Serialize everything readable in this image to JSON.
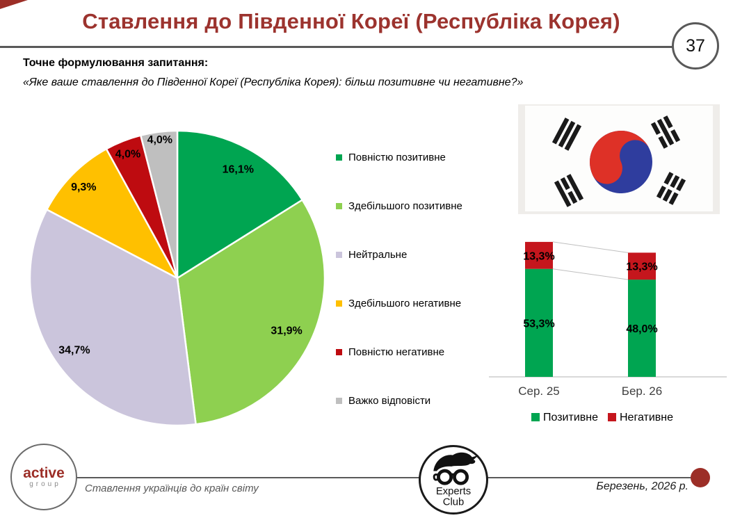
{
  "slide": {
    "title": "Ставлення до Південної Кореї (Республіка Корея)",
    "page_number": "37"
  },
  "question": {
    "label": "Точне формулювання запитання:",
    "text": "«Яке ваше ставлення до Південної Кореї (Республіка Корея): більш позитивне чи негативне?»"
  },
  "colors": {
    "brand_dark_red": "#9C2E27",
    "header_line": "#595959",
    "positive_green": "#00A551",
    "negative_red": "#C5161D"
  },
  "chart_data": [
    {
      "type": "pie",
      "labels": [
        "Повністю позитивне",
        "Здебільшого позитивне",
        "Нейтральне",
        "Здебільшого негативне",
        "Повністю негативне",
        "Важко відповісти"
      ],
      "values": [
        16.1,
        31.9,
        34.7,
        9.3,
        4.0,
        4.0
      ],
      "value_labels": [
        "16,1%",
        "31,9%",
        "34,7%",
        "9,3%",
        "4,0%",
        "4,0%"
      ],
      "colors": [
        "#00A551",
        "#8ED050",
        "#CBC5DC",
        "#FFC000",
        "#BE0B10",
        "#BFBFBF"
      ],
      "start_angle": 0,
      "direction": "clockwise",
      "legend_position": "right"
    },
    {
      "type": "bar",
      "subtype": "stacked-column",
      "categories": [
        "Сер. 25",
        "Бер. 26"
      ],
      "series": [
        {
          "name": "Позитивне",
          "color": "#00A551",
          "values": [
            53.3,
            48.0
          ],
          "value_labels": [
            "53,3%",
            "48,0%"
          ]
        },
        {
          "name": "Негативне",
          "color": "#C5161D",
          "values": [
            13.3,
            13.3
          ],
          "value_labels": [
            "13,3%",
            "13,3%"
          ]
        }
      ],
      "ylim": [
        0,
        70
      ],
      "axis_max": 70,
      "grid": false,
      "connector_lines": true,
      "legend_position": "bottom"
    }
  ],
  "flag": {
    "country": "south-korea"
  },
  "footer": {
    "active_logo": {
      "line1": "active",
      "line2": "group"
    },
    "caption": "Ставлення українців до країн світу",
    "experts_logo": {
      "line1": "Experts",
      "line2": "Club"
    },
    "date": "Березень, 2026 р."
  }
}
